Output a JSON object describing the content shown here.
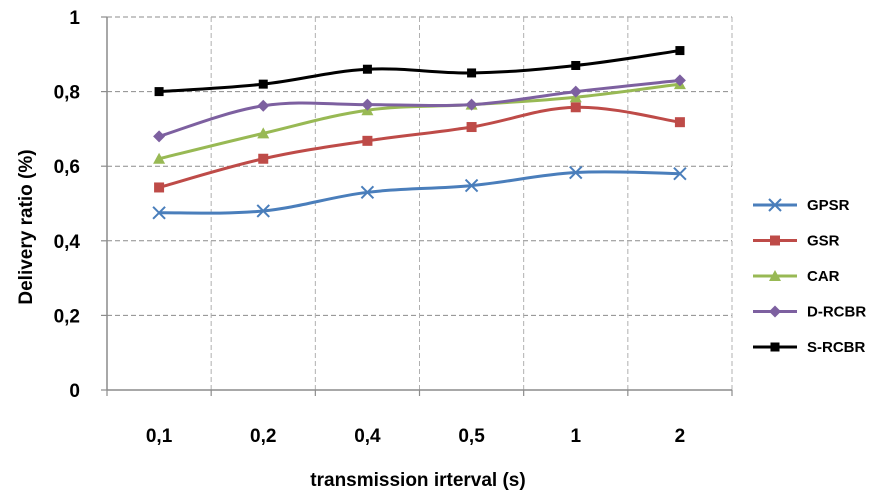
{
  "chart_data": {
    "type": "line",
    "title": "",
    "xlabel": "transmission irterval (s)",
    "ylabel": "Delivery ratio (%)",
    "categories": [
      "0,1",
      "0,2",
      "0,4",
      "0,5",
      "1",
      "2"
    ],
    "yticks": [
      "0",
      "0,2",
      "0,4",
      "0,6",
      "0,8",
      "1"
    ],
    "ylim": [
      0,
      1
    ],
    "grid": "dashed",
    "legend": "right",
    "series": [
      {
        "name": "GPSR",
        "color": "#4a7ebb",
        "marker": "x",
        "values": [
          0.475,
          0.48,
          0.53,
          0.548,
          0.583,
          0.58
        ]
      },
      {
        "name": "GSR",
        "color": "#be4b48",
        "marker": "square",
        "values": [
          0.543,
          0.62,
          0.668,
          0.705,
          0.758,
          0.718
        ]
      },
      {
        "name": "CAR",
        "color": "#98b954",
        "marker": "triangle",
        "values": [
          0.62,
          0.688,
          0.75,
          0.765,
          0.785,
          0.82
        ]
      },
      {
        "name": "D-RCBR",
        "color": "#7d60a0",
        "marker": "diamond",
        "values": [
          0.68,
          0.762,
          0.765,
          0.765,
          0.8,
          0.83
        ]
      },
      {
        "name": "S-RCBR",
        "color": "#000000",
        "marker": "star",
        "values": [
          0.8,
          0.82,
          0.86,
          0.85,
          0.87,
          0.91
        ]
      }
    ]
  }
}
